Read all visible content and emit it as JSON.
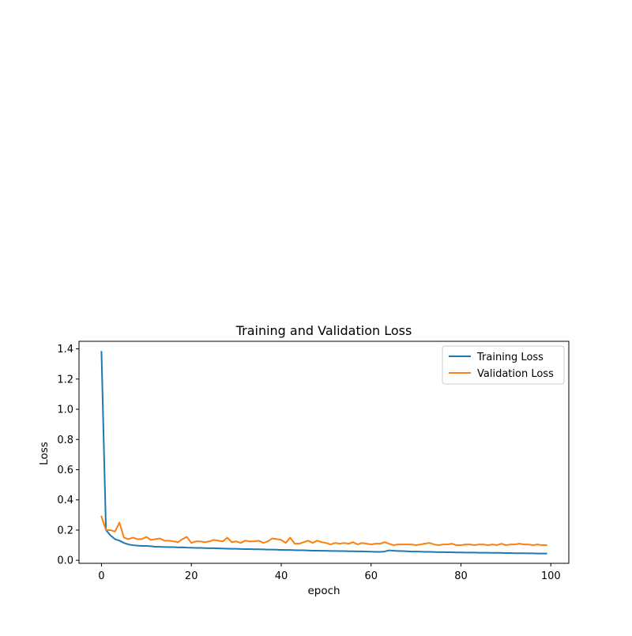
{
  "chart_data": {
    "type": "line",
    "title": "Training and Validation Loss",
    "xlabel": "epoch",
    "ylabel": "Loss",
    "xlim": [
      -5,
      104
    ],
    "ylim": [
      -0.02,
      1.45
    ],
    "grid": false,
    "legend_location": "top-right",
    "xticks": [
      0,
      20,
      40,
      60,
      80,
      100
    ],
    "yticks": [
      0.0,
      0.2,
      0.4,
      0.6,
      0.8,
      1.0,
      1.2,
      1.4
    ],
    "series": [
      {
        "name": "Training Loss",
        "color": "#1f77b4",
        "x": [
          0,
          1,
          2,
          3,
          4,
          5,
          6,
          7,
          8,
          9,
          10,
          11,
          12,
          13,
          14,
          15,
          16,
          17,
          18,
          19,
          20,
          21,
          22,
          23,
          24,
          25,
          26,
          27,
          28,
          29,
          30,
          31,
          32,
          33,
          34,
          35,
          36,
          37,
          38,
          39,
          40,
          41,
          42,
          43,
          44,
          45,
          46,
          47,
          48,
          49,
          50,
          51,
          52,
          53,
          54,
          55,
          56,
          57,
          58,
          59,
          60,
          61,
          62,
          63,
          64,
          65,
          66,
          67,
          68,
          69,
          70,
          71,
          72,
          73,
          74,
          75,
          76,
          77,
          78,
          79,
          80,
          81,
          82,
          83,
          84,
          85,
          86,
          87,
          88,
          89,
          90,
          91,
          92,
          93,
          94,
          95,
          96,
          97,
          98,
          99
        ],
        "values": [
          1.38,
          0.2,
          0.165,
          0.14,
          0.13,
          0.115,
          0.105,
          0.1,
          0.097,
          0.095,
          0.095,
          0.093,
          0.09,
          0.089,
          0.088,
          0.087,
          0.087,
          0.085,
          0.086,
          0.084,
          0.083,
          0.082,
          0.082,
          0.081,
          0.08,
          0.08,
          0.079,
          0.078,
          0.077,
          0.076,
          0.076,
          0.075,
          0.074,
          0.074,
          0.073,
          0.073,
          0.072,
          0.071,
          0.071,
          0.07,
          0.069,
          0.068,
          0.068,
          0.067,
          0.066,
          0.066,
          0.065,
          0.064,
          0.064,
          0.063,
          0.063,
          0.062,
          0.062,
          0.061,
          0.061,
          0.06,
          0.06,
          0.059,
          0.059,
          0.058,
          0.057,
          0.056,
          0.056,
          0.058,
          0.066,
          0.063,
          0.062,
          0.061,
          0.06,
          0.058,
          0.058,
          0.057,
          0.056,
          0.056,
          0.055,
          0.054,
          0.054,
          0.053,
          0.053,
          0.052,
          0.052,
          0.051,
          0.051,
          0.051,
          0.05,
          0.05,
          0.05,
          0.049,
          0.049,
          0.049,
          0.048,
          0.048,
          0.047,
          0.047,
          0.047,
          0.046,
          0.046,
          0.045,
          0.045,
          0.045
        ]
      },
      {
        "name": "Validation Loss",
        "color": "#ff7f0e",
        "x": [
          0,
          1,
          2,
          3,
          4,
          5,
          6,
          7,
          8,
          9,
          10,
          11,
          12,
          13,
          14,
          15,
          16,
          17,
          18,
          19,
          20,
          21,
          22,
          23,
          24,
          25,
          26,
          27,
          28,
          29,
          30,
          31,
          32,
          33,
          34,
          35,
          36,
          37,
          38,
          39,
          40,
          41,
          42,
          43,
          44,
          45,
          46,
          47,
          48,
          49,
          50,
          51,
          52,
          53,
          54,
          55,
          56,
          57,
          58,
          59,
          60,
          61,
          62,
          63,
          64,
          65,
          66,
          67,
          68,
          69,
          70,
          71,
          72,
          73,
          74,
          75,
          76,
          77,
          78,
          79,
          80,
          81,
          82,
          83,
          84,
          85,
          86,
          87,
          88,
          89,
          90,
          91,
          92,
          93,
          94,
          95,
          96,
          97,
          98,
          99
        ],
        "values": [
          0.29,
          0.2,
          0.2,
          0.19,
          0.25,
          0.15,
          0.14,
          0.15,
          0.14,
          0.14,
          0.155,
          0.135,
          0.14,
          0.145,
          0.13,
          0.13,
          0.125,
          0.12,
          0.14,
          0.155,
          0.115,
          0.125,
          0.125,
          0.12,
          0.125,
          0.135,
          0.13,
          0.125,
          0.15,
          0.12,
          0.125,
          0.115,
          0.13,
          0.125,
          0.125,
          0.13,
          0.115,
          0.125,
          0.145,
          0.14,
          0.135,
          0.115,
          0.15,
          0.11,
          0.11,
          0.12,
          0.13,
          0.115,
          0.13,
          0.12,
          0.115,
          0.105,
          0.115,
          0.11,
          0.115,
          0.11,
          0.12,
          0.105,
          0.115,
          0.11,
          0.105,
          0.11,
          0.11,
          0.12,
          0.11,
          0.1,
          0.105,
          0.105,
          0.105,
          0.105,
          0.1,
          0.105,
          0.11,
          0.115,
          0.105,
          0.1,
          0.105,
          0.105,
          0.11,
          0.1,
          0.1,
          0.105,
          0.105,
          0.1,
          0.105,
          0.105,
          0.1,
          0.105,
          0.1,
          0.11,
          0.1,
          0.105,
          0.105,
          0.11,
          0.105,
          0.105,
          0.1,
          0.105,
          0.1,
          0.1
        ]
      }
    ]
  }
}
